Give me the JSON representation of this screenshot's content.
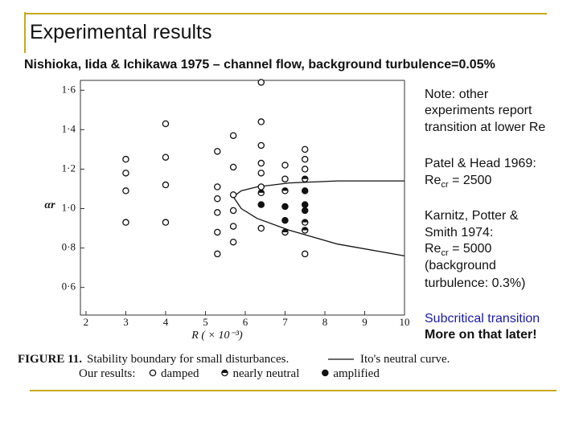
{
  "title": "Experimental results",
  "subtitle": "Nishioka, Iida & Ichikawa 1975 – channel flow, background turbulence=0.05%",
  "notes": {
    "note": [
      "Note: other",
      "experiments report",
      "transition at lower Re"
    ],
    "patel": {
      "line": "Patel & Head 1969:",
      "re": "Re",
      "sub": "cr",
      "value": " = 2500"
    },
    "karnitz": {
      "lines": [
        "Karnitz, Potter &",
        "Smith 1974:"
      ],
      "re": "Re",
      "sub": "cr",
      "value": " = 5000",
      "extra": [
        "(background",
        "turbulence: 0.3%)"
      ]
    },
    "subcritical": "Subcritical transition",
    "later": "More on that later!"
  },
  "caption": {
    "figure": "FIGURE 11.",
    "text": "Stability boundary for small disturbances.",
    "curve_label": "Ito's neutral curve.",
    "legend_intro": "Our results:"
  },
  "chart_data": {
    "type": "scatter",
    "x_label": "R ( × 10⁻³)",
    "y_label": "αr",
    "xlim": [
      1.86,
      10
    ],
    "ylim": [
      0.46,
      1.65
    ],
    "xticks": [
      2,
      3,
      4,
      5,
      6,
      7,
      8,
      9,
      10
    ],
    "yticks": [
      {
        "value": 0.6,
        "label": "0·6"
      },
      {
        "value": 0.8,
        "label": "0·8"
      },
      {
        "value": 1.0,
        "label": "1·0"
      },
      {
        "value": 1.2,
        "label": "1·2"
      },
      {
        "value": 1.4,
        "label": "1·4"
      },
      {
        "value": 1.6,
        "label": "1·6"
      }
    ],
    "series": [
      {
        "name": "damped",
        "color": "#111111",
        "marker": "open",
        "x": [
          3,
          3,
          3,
          3,
          4,
          4,
          4,
          4,
          5.3,
          5.3,
          5.3,
          5.3,
          5.3,
          5.3,
          5.7,
          5.7,
          5.7,
          5.7,
          5.7,
          5.7,
          6.4,
          6.4,
          6.4,
          6.4,
          6.4,
          6.4,
          6.4,
          7,
          7,
          7.5,
          7.5,
          7.5,
          7.5
        ],
        "values": [
          1.25,
          1.18,
          1.09,
          0.93,
          1.43,
          1.26,
          1.12,
          0.93,
          1.29,
          1.11,
          1.05,
          0.98,
          0.88,
          0.77,
          1.37,
          1.21,
          1.07,
          0.99,
          0.91,
          0.83,
          1.64,
          1.44,
          1.32,
          1.23,
          1.18,
          1.11,
          0.9,
          1.22,
          1.15,
          1.3,
          1.25,
          1.2,
          0.77
        ]
      },
      {
        "name": "nearly neutral",
        "color": "#111111",
        "marker": "half",
        "x": [
          6.4,
          7,
          7,
          7.5,
          7.5,
          7.5
        ],
        "values": [
          1.08,
          1.09,
          0.88,
          1.15,
          0.93,
          0.89
        ]
      },
      {
        "name": "amplified",
        "color": "#111111",
        "marker": "filled",
        "x": [
          6.4,
          7,
          7,
          7.5,
          7.5,
          7.5
        ],
        "values": [
          1.02,
          1.01,
          0.94,
          1.09,
          1.02,
          0.99
        ]
      }
    ],
    "curve": {
      "color": "#111111",
      "x": [
        10,
        8.32,
        7.11,
        6.3,
        5.9,
        5.7,
        5.9,
        6.3,
        7.11,
        8.32,
        10
      ],
      "values": [
        1.14,
        1.14,
        1.13,
        1.11,
        1.09,
        1.06,
        1.0,
        0.95,
        0.89,
        0.82,
        0.76
      ]
    }
  }
}
